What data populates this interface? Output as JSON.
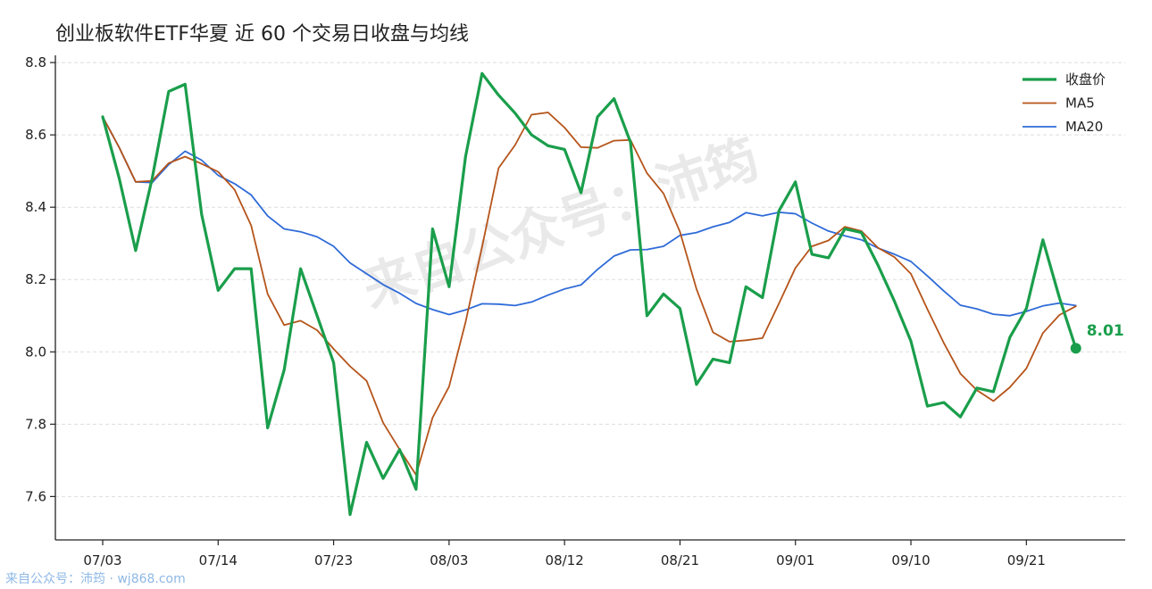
{
  "chart_data": {
    "type": "line",
    "title": "创业板软件ETF华夏 近 60 个交易日收盘与均线",
    "x_tick_labels": [
      "07/03",
      "07/14",
      "07/23",
      "08/03",
      "08/12",
      "08/21",
      "09/01",
      "09/10",
      "09/21"
    ],
    "x_tick_index": [
      0,
      7,
      14,
      21,
      28,
      35,
      42,
      49,
      56
    ],
    "ylim": [
      7.48,
      8.82
    ],
    "y_ticks": [
      7.6,
      7.8,
      8.0,
      8.2,
      8.4,
      8.6,
      8.8
    ],
    "grid": "horizontal dashed",
    "legend_position": "top-right",
    "series": [
      {
        "name": "收盘价",
        "color": "#1a9e4b",
        "width": 3.2,
        "values": [
          8.65,
          8.48,
          8.28,
          8.48,
          8.72,
          8.74,
          8.38,
          8.17,
          8.23,
          8.23,
          7.79,
          7.95,
          8.23,
          8.1,
          7.97,
          7.55,
          7.75,
          7.65,
          7.73,
          7.62,
          8.34,
          8.18,
          8.54,
          8.77,
          8.71,
          8.66,
          8.6,
          8.57,
          8.56,
          8.44,
          8.65,
          8.7,
          8.58,
          8.1,
          8.16,
          8.12,
          7.91,
          7.98,
          7.97,
          8.18,
          8.15,
          8.39,
          8.47,
          8.27,
          8.26,
          8.34,
          8.33,
          8.24,
          8.14,
          8.03,
          7.85,
          7.86,
          7.82,
          7.9,
          7.89,
          8.04,
          8.12,
          8.31,
          8.15,
          8.01
        ]
      },
      {
        "name": "MA5",
        "color": "#b5541a",
        "width": 1.8,
        "values": [
          8.65,
          8.565,
          8.47,
          8.473,
          8.522,
          8.54,
          8.52,
          8.498,
          8.448,
          8.35,
          8.16,
          8.074,
          8.086,
          8.06,
          8.008,
          7.96,
          7.92,
          7.804,
          7.73,
          7.66,
          7.818,
          7.904,
          8.082,
          8.29,
          8.508,
          8.572,
          8.656,
          8.662,
          8.62,
          8.566,
          8.564,
          8.584,
          8.586,
          8.494,
          8.438,
          8.332,
          8.174,
          8.054,
          8.028,
          8.032,
          8.038,
          8.134,
          8.232,
          8.292,
          8.308,
          8.346,
          8.334,
          8.288,
          8.262,
          8.216,
          8.118,
          8.024,
          7.94,
          7.894,
          7.864,
          7.902,
          7.954,
          8.052,
          8.102,
          8.126
        ]
      },
      {
        "name": "MA20",
        "color": "#2f6bd8",
        "width": 1.8,
        "values": [
          8.65,
          8.565,
          8.47,
          8.468,
          8.518,
          8.555,
          8.53,
          8.488,
          8.465,
          8.434,
          8.376,
          8.34,
          8.332,
          8.318,
          8.292,
          8.246,
          8.216,
          8.186,
          8.162,
          8.134,
          8.117,
          8.103,
          8.116,
          8.133,
          8.132,
          8.128,
          8.138,
          8.157,
          8.174,
          8.185,
          8.228,
          8.265,
          8.282,
          8.283,
          8.292,
          8.322,
          8.33,
          8.346,
          8.358,
          8.385,
          8.376,
          8.386,
          8.382,
          8.356,
          8.334,
          8.321,
          8.31,
          8.287,
          8.27,
          8.25,
          8.21,
          8.168,
          8.129,
          8.119,
          8.104,
          8.1,
          8.112,
          8.127,
          8.135,
          8.128
        ]
      }
    ],
    "last_value_label": "8.01"
  },
  "footer_text": "来自公众号：沛筠 · wj868.com",
  "watermark_text": "来自公众号：沛筠"
}
